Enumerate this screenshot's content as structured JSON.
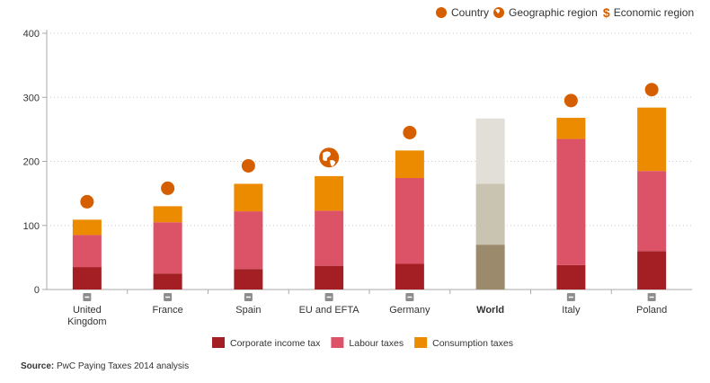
{
  "header_legend": [
    {
      "label": "Country",
      "icon": "dot-icon"
    },
    {
      "label": "Geographic region",
      "icon": "globe-icon"
    },
    {
      "label": "Economic region",
      "icon": "dollar-icon"
    }
  ],
  "colors": {
    "corporate": "#a31f24",
    "labour": "#dc5368",
    "consumption": "#ec8b00",
    "world_corporate": "#9b8b6c",
    "world_labour": "#c9c3b2",
    "world_consumption": "#e2dfd8",
    "marker": "#d55e00"
  },
  "source": {
    "label": "Source:",
    "text": "PwC Paying Taxes 2014 analysis"
  },
  "chart_data": {
    "type": "bar",
    "stacked": true,
    "categories": [
      "United Kingdom",
      "France",
      "Spain",
      "EU and EFTA",
      "Germany",
      "World",
      "Italy",
      "Poland"
    ],
    "category_lines": [
      [
        "United",
        "Kingdom"
      ],
      [
        "France"
      ],
      [
        "Spain"
      ],
      [
        "EU and EFTA"
      ],
      [
        "Germany"
      ],
      [
        "World"
      ],
      [
        "Italy"
      ],
      [
        "Poland"
      ]
    ],
    "highlight": "World",
    "series": [
      {
        "name": "Corporate income tax",
        "values": [
          35,
          25,
          32,
          37,
          40,
          70,
          38,
          60
        ]
      },
      {
        "name": "Labour taxes",
        "values": [
          50,
          80,
          90,
          86,
          134,
          95,
          197,
          125
        ]
      },
      {
        "name": "Consumption taxes",
        "values": [
          24,
          25,
          43,
          54,
          43,
          102,
          33,
          99
        ]
      }
    ],
    "markers": [
      {
        "category": "United Kingdom",
        "value": 137,
        "kind": "country"
      },
      {
        "category": "France",
        "value": 158,
        "kind": "country"
      },
      {
        "category": "Spain",
        "value": 193,
        "kind": "country"
      },
      {
        "category": "EU and EFTA",
        "value": 206,
        "kind": "geographic"
      },
      {
        "category": "Germany",
        "value": 245,
        "kind": "country"
      },
      {
        "category": "Italy",
        "value": 295,
        "kind": "country"
      },
      {
        "category": "Poland",
        "value": 312,
        "kind": "country"
      }
    ],
    "y_ticks": [
      0,
      100,
      200,
      300,
      400
    ],
    "ylim": [
      0,
      400
    ],
    "grid": true,
    "legend_position": "bottom"
  }
}
